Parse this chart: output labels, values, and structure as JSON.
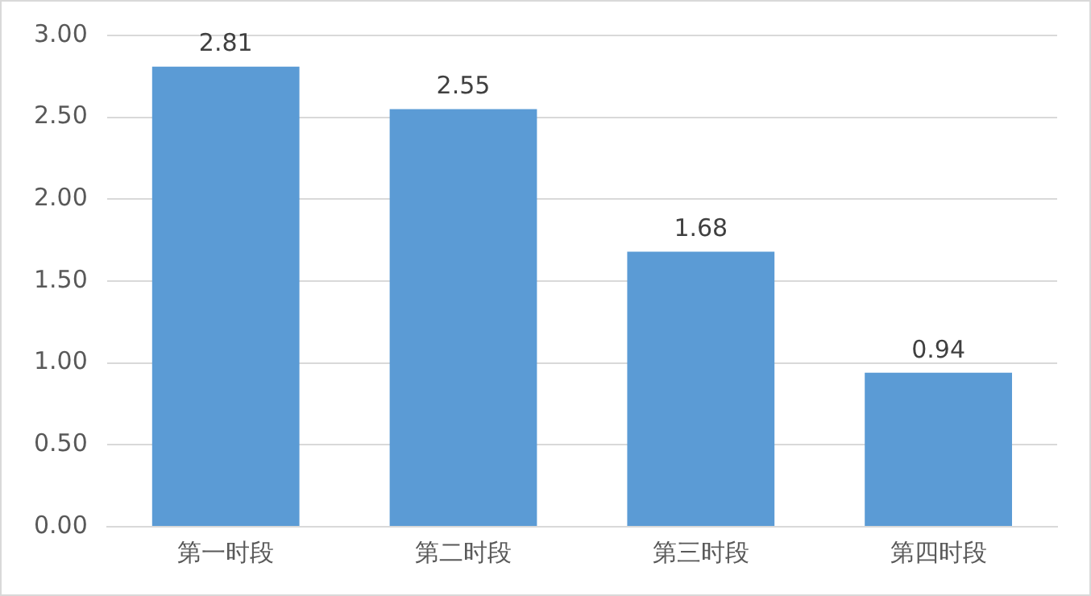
{
  "chart_data": {
    "type": "bar",
    "categories": [
      "第一时段",
      "第二时段",
      "第三时段",
      "第四时段"
    ],
    "values": [
      2.81,
      2.55,
      1.68,
      0.94
    ],
    "color": "#5b9bd5",
    "ylim": [
      0,
      3
    ],
    "yticks": [
      {
        "value": 0,
        "label": "0.00"
      },
      {
        "value": 0.5,
        "label": "0.50"
      },
      {
        "value": 1,
        "label": "1.00"
      },
      {
        "value": 1.5,
        "label": "1.50"
      },
      {
        "value": 2,
        "label": "2.00"
      },
      {
        "value": 2.5,
        "label": "2.50"
      },
      {
        "value": 3,
        "label": "3.00"
      }
    ],
    "grid": "y",
    "data_labels": true,
    "legend": false
  }
}
